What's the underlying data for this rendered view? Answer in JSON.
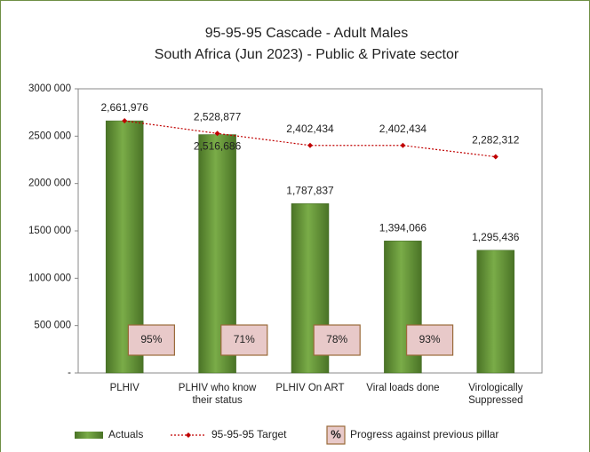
{
  "chart_data": {
    "type": "bar",
    "title": "95-95-95 Cascade - Adult Males",
    "subtitle": "South Africa (Jun 2023) - Public & Private sector",
    "categories": [
      "PLHIV",
      "PLHIV who know their status",
      "PLHIV On ART",
      "Viral loads done",
      "Virologically Suppressed"
    ],
    "series": [
      {
        "name": "Actuals",
        "type": "bar",
        "color": "#5e8d33",
        "values": [
          2661976,
          2516686,
          1787837,
          1394066,
          1295436
        ],
        "value_labels": [
          "2,661,976",
          "2,516,686",
          "1,787,837",
          "1,394,066",
          "1,295,436"
        ]
      },
      {
        "name": "95-95-95 Target",
        "type": "line",
        "color": "#c00000",
        "values": [
          2661976,
          2528877,
          2402434,
          2402434,
          2282312
        ],
        "value_labels": [
          null,
          "2,528,877",
          "2,402,434",
          "2,402,434",
          "2,282,312"
        ]
      }
    ],
    "progress": {
      "name": "Progress against previous pillar",
      "symbol": "%",
      "values": [
        95,
        71,
        78,
        93
      ],
      "value_labels": [
        "95%",
        "71%",
        "78%",
        "93%"
      ]
    },
    "ylim": [
      0,
      3000000
    ],
    "yticks": [
      {
        "value": 0,
        "label": "-"
      },
      {
        "value": 500000,
        "label": "500 000"
      },
      {
        "value": 1000000,
        "label": "1000 000"
      },
      {
        "value": 1500000,
        "label": "1500 000"
      },
      {
        "value": 2000000,
        "label": "2000 000"
      },
      {
        "value": 2500000,
        "label": "2500 000"
      },
      {
        "value": 3000000,
        "label": "3000 000"
      }
    ],
    "grid": false
  }
}
